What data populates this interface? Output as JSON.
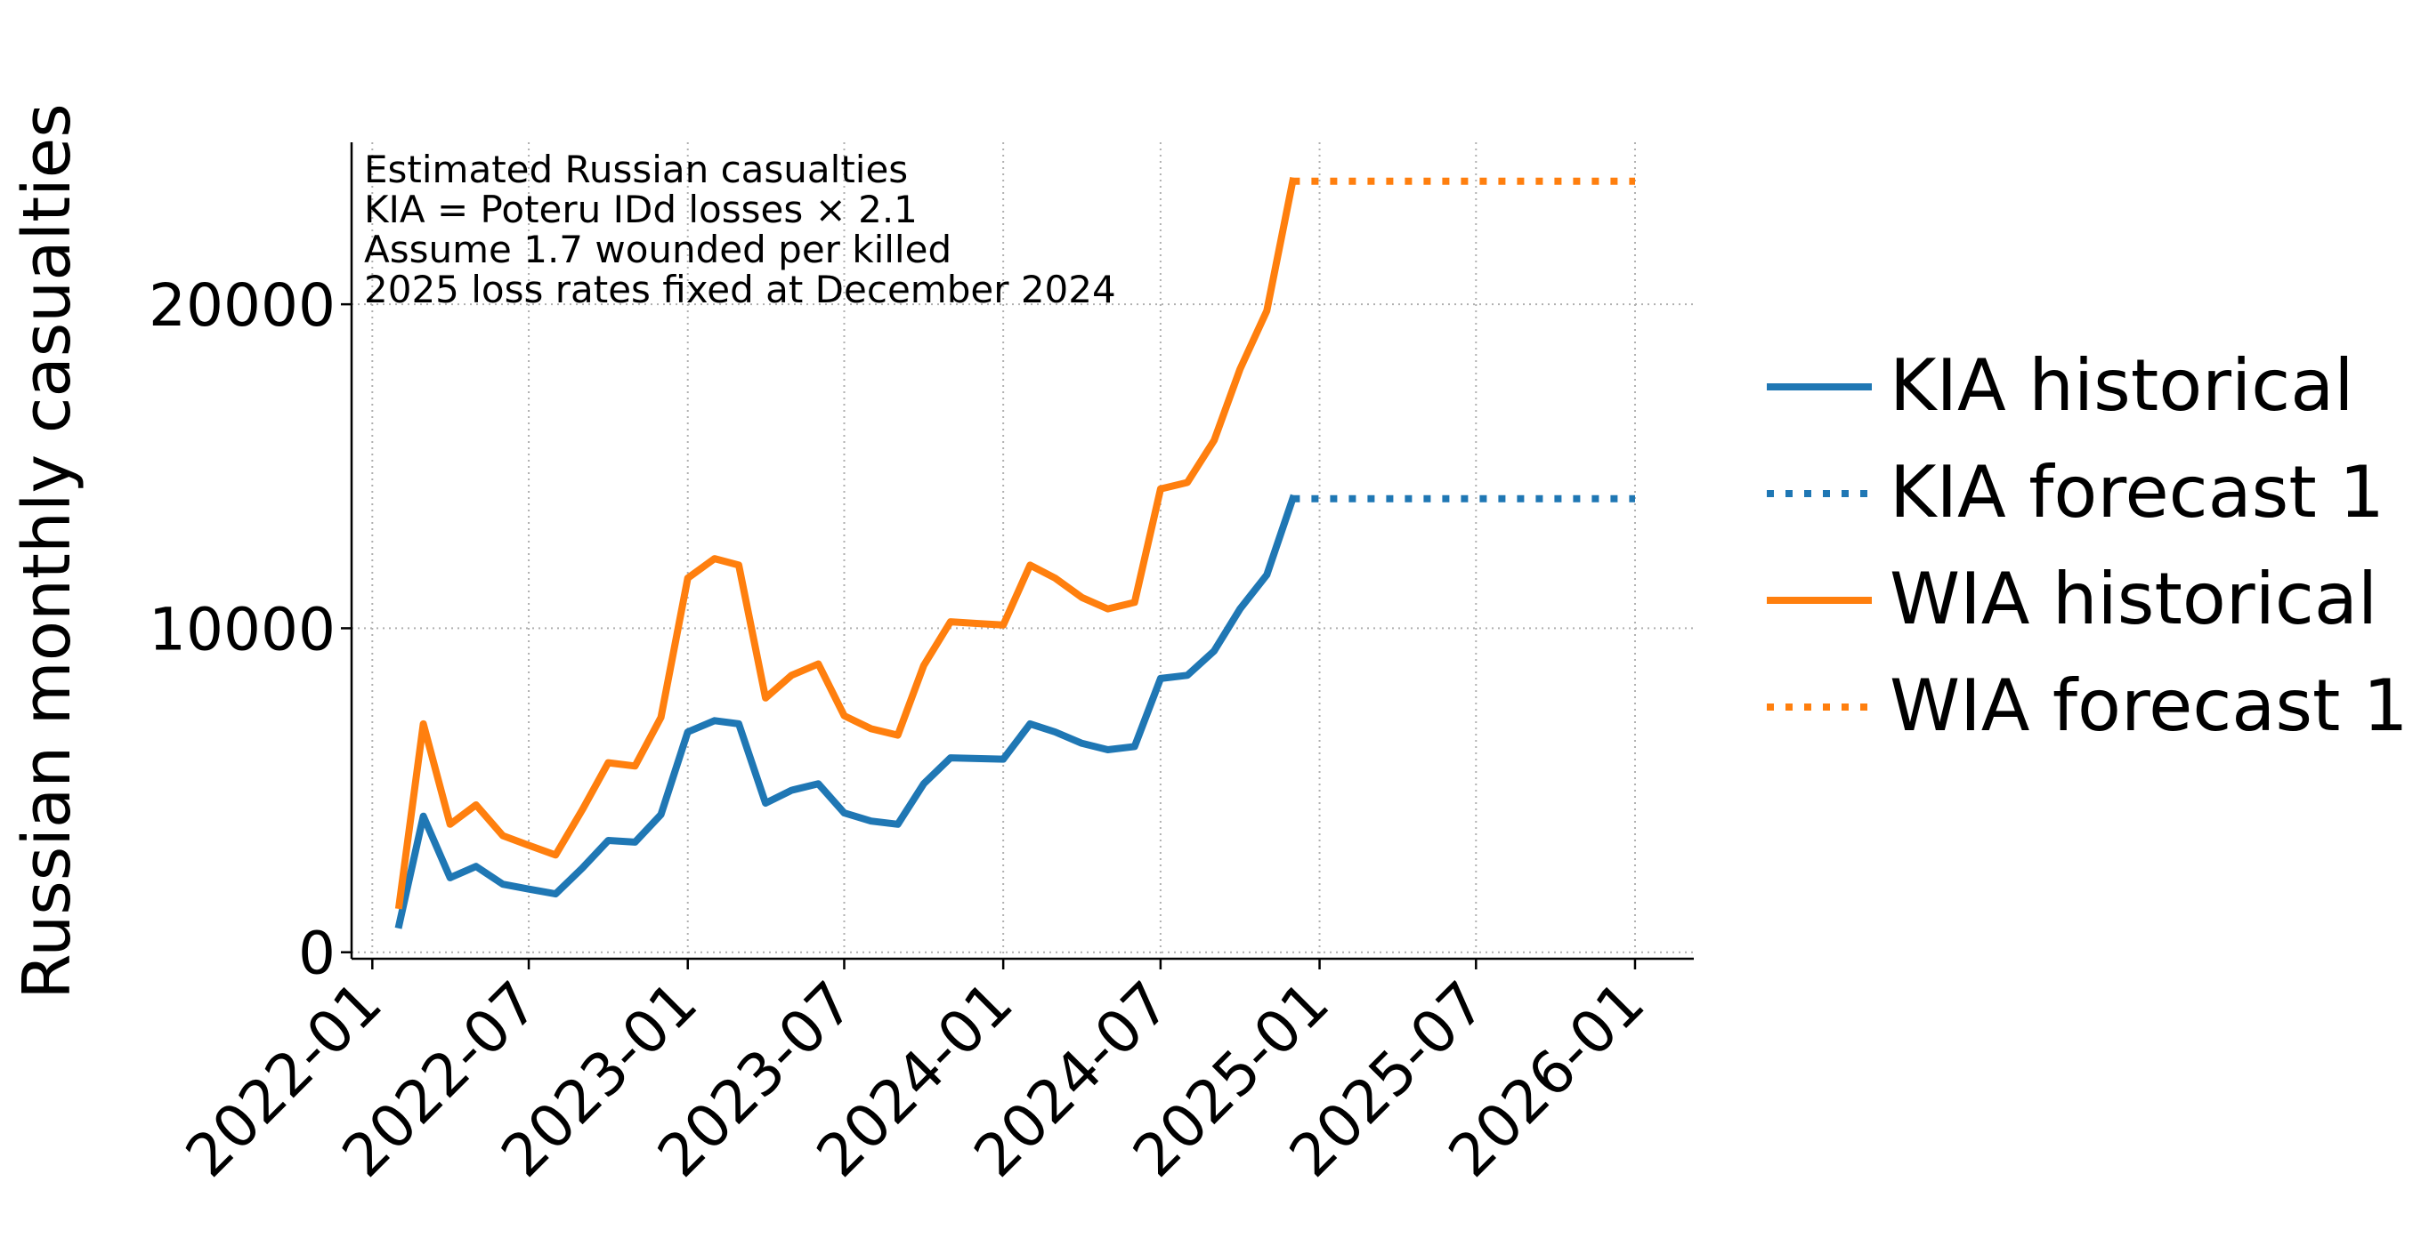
{
  "chart_data": {
    "type": "line",
    "title": "",
    "ylabel": "Russian monthly casualties",
    "xlabel": "",
    "ylim": [
      -200,
      25000
    ],
    "xlim": [
      "2021-12-08",
      "2026-03-10"
    ],
    "grid": true,
    "legend_position": "right",
    "yticks": [
      0,
      10000,
      20000
    ],
    "xticks": [
      "2022-01",
      "2022-07",
      "2023-01",
      "2023-07",
      "2024-01",
      "2024-07",
      "2025-01",
      "2025-07",
      "2026-01"
    ],
    "annotation_lines": [
      "Estimated Russian casualties",
      "KIA = Poteru IDd losses × 2.1",
      "Assume 1.7 wounded per killed",
      "2025 loss rates fixed at December 2024"
    ],
    "colors": {
      "kia": "#1f77b4",
      "wia": "#ff7f0e"
    },
    "series": [
      {
        "name": "KIA historical",
        "style": "solid",
        "color": "#1f77b4",
        "x": [
          "2022-02",
          "2022-03",
          "2022-04",
          "2022-05",
          "2022-06",
          "2022-07",
          "2022-08",
          "2022-09",
          "2022-10",
          "2022-11",
          "2022-12",
          "2023-01",
          "2023-02",
          "2023-03",
          "2023-04",
          "2023-05",
          "2023-06",
          "2023-07",
          "2023-08",
          "2023-09",
          "2023-10",
          "2023-11",
          "2023-12",
          "2024-01",
          "2024-02",
          "2024-03",
          "2024-04",
          "2024-05",
          "2024-06",
          "2024-07",
          "2024-08",
          "2024-09",
          "2024-10",
          "2024-11",
          "2024-12"
        ],
        "values": [
          850,
          4200,
          2300,
          2650,
          2100,
          1950,
          1800,
          2600,
          3450,
          3400,
          4250,
          6800,
          7150,
          7050,
          4600,
          5000,
          5200,
          4300,
          4050,
          3950,
          5200,
          6000,
          5980,
          5960,
          7050,
          6800,
          6450,
          6250,
          6350,
          8450,
          8550,
          9300,
          10600,
          11650,
          14000
        ]
      },
      {
        "name": "KIA forecast 1",
        "style": "dotted",
        "color": "#1f77b4",
        "x": [
          "2024-12",
          "2025-01",
          "2025-02",
          "2025-03",
          "2025-04",
          "2025-05",
          "2025-06",
          "2025-07",
          "2025-08",
          "2025-09",
          "2025-10",
          "2025-11",
          "2025-12",
          "2026-01"
        ],
        "values": [
          14000,
          14000,
          14000,
          14000,
          14000,
          14000,
          14000,
          14000,
          14000,
          14000,
          14000,
          14000,
          14000,
          14000
        ]
      },
      {
        "name": "WIA historical",
        "style": "solid",
        "color": "#ff7f0e",
        "x": [
          "2022-02",
          "2022-03",
          "2022-04",
          "2022-05",
          "2022-06",
          "2022-07",
          "2022-08",
          "2022-09",
          "2022-10",
          "2022-11",
          "2022-12",
          "2023-01",
          "2023-02",
          "2023-03",
          "2023-04",
          "2023-05",
          "2023-06",
          "2023-07",
          "2023-08",
          "2023-09",
          "2023-10",
          "2023-11",
          "2023-12",
          "2024-01",
          "2024-02",
          "2024-03",
          "2024-04",
          "2024-05",
          "2024-06",
          "2024-07",
          "2024-08",
          "2024-09",
          "2024-10",
          "2024-11",
          "2024-12"
        ],
        "values": [
          1450,
          7050,
          3950,
          4550,
          3600,
          3300,
          3000,
          4400,
          5850,
          5750,
          7250,
          11550,
          12150,
          11950,
          7850,
          8550,
          8900,
          7300,
          6900,
          6700,
          8850,
          10200,
          10150,
          10100,
          11950,
          11550,
          10950,
          10600,
          10800,
          14300,
          14500,
          15800,
          18000,
          19800,
          23800
        ]
      },
      {
        "name": "WIA forecast 1",
        "style": "dotted",
        "color": "#ff7f0e",
        "x": [
          "2024-12",
          "2025-01",
          "2025-02",
          "2025-03",
          "2025-04",
          "2025-05",
          "2025-06",
          "2025-07",
          "2025-08",
          "2025-09",
          "2025-10",
          "2025-11",
          "2025-12",
          "2026-01"
        ],
        "values": [
          23800,
          23800,
          23800,
          23800,
          23800,
          23800,
          23800,
          23800,
          23800,
          23800,
          23800,
          23800,
          23800,
          23800
        ]
      }
    ]
  }
}
